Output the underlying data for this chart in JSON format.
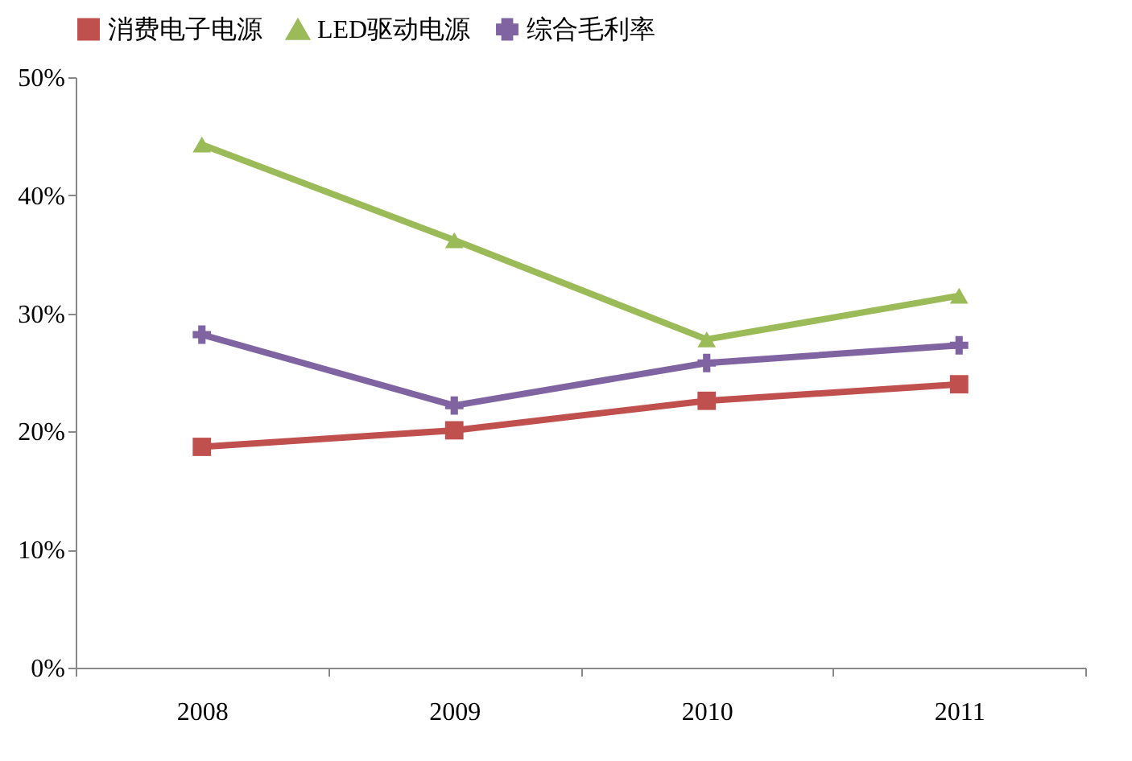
{
  "chart_data": {
    "type": "line",
    "categories": [
      "2008",
      "2009",
      "2010",
      "2011"
    ],
    "series": [
      {
        "name": "消费电子电源",
        "color": "#c0504d",
        "marker": "square",
        "values": [
          18.7,
          20.1,
          22.6,
          24.0
        ]
      },
      {
        "name": "LED驱动电源",
        "color": "#9bbb59",
        "marker": "triangle",
        "values": [
          44.3,
          36.2,
          27.8,
          31.5
        ]
      },
      {
        "name": "综合毛利率",
        "color": "#8064a2",
        "marker": "cross",
        "values": [
          28.2,
          22.2,
          25.8,
          27.3
        ]
      }
    ],
    "ylim": [
      0,
      50
    ],
    "yticks": [
      {
        "value": 0,
        "label": "0%"
      },
      {
        "value": 10,
        "label": "10%"
      },
      {
        "value": 20,
        "label": "20%"
      },
      {
        "value": 30,
        "label": "30%"
      },
      {
        "value": 40,
        "label": "40%"
      },
      {
        "value": 50,
        "label": "50%"
      }
    ],
    "grid": false,
    "legend": "top",
    "line_style": "solid"
  }
}
